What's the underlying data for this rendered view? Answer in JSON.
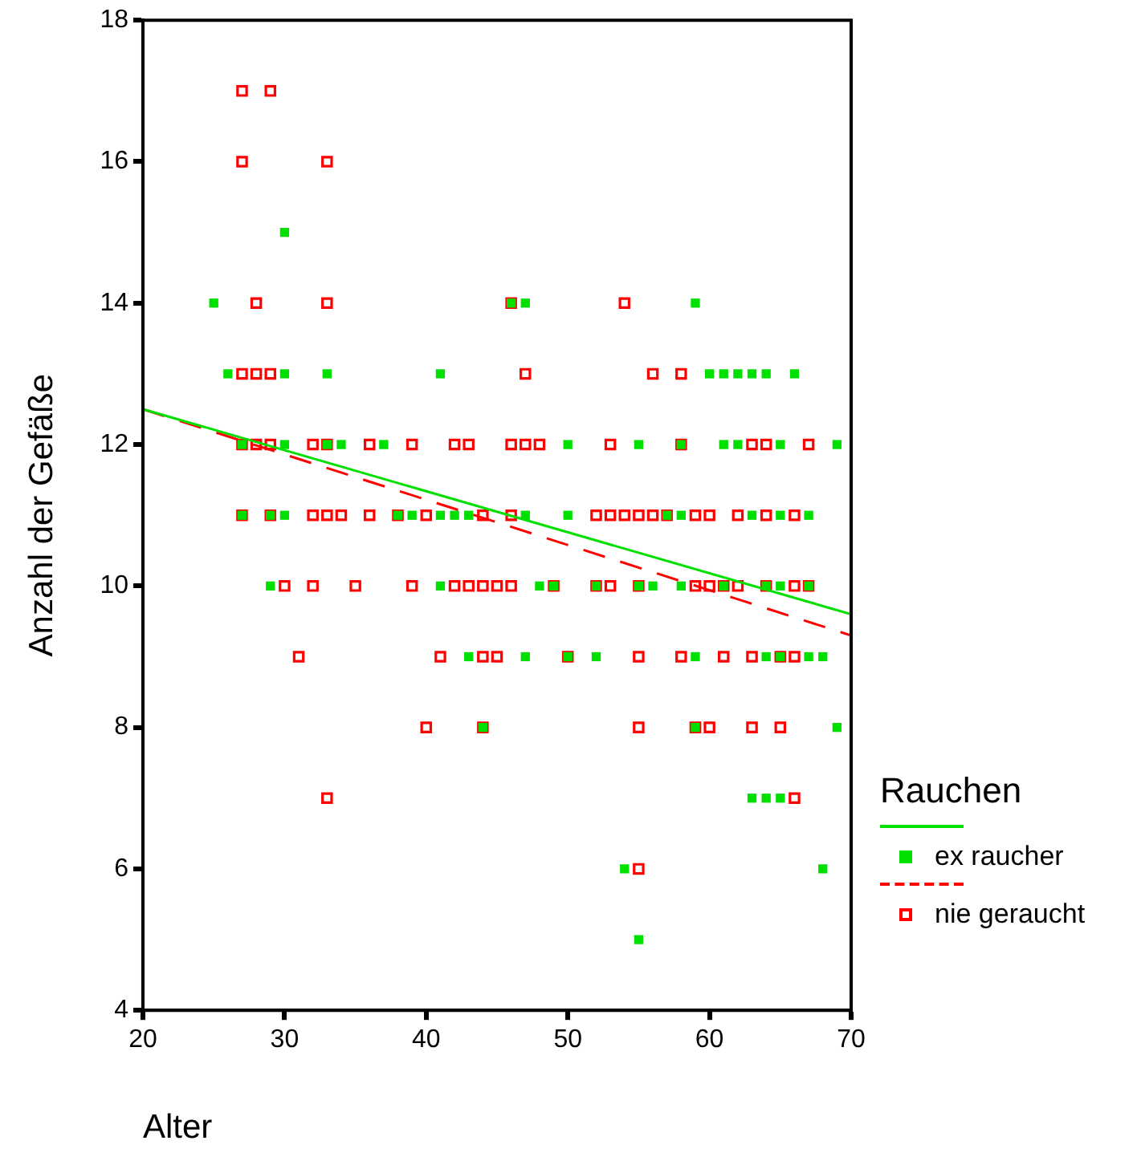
{
  "chart_data": {
    "type": "scatter",
    "xlabel": "Alter",
    "ylabel": "Anzahl der Gefäße",
    "legend_title": "Rauchen",
    "legend": "right",
    "grid": false,
    "marker": "square",
    "xlim": [
      20,
      70
    ],
    "xticks": [
      20,
      30,
      40,
      50,
      60,
      70
    ],
    "ylim": [
      4,
      18
    ],
    "yticks": [
      4,
      6,
      8,
      10,
      12,
      14,
      16,
      18
    ],
    "series": [
      {
        "name": "ex raucher",
        "color": "#00e000",
        "x": [
          30,
          25,
          46,
          47,
          59,
          26,
          30,
          33,
          41,
          60,
          61,
          62,
          63,
          64,
          66,
          27,
          30,
          33,
          34,
          37,
          50,
          55,
          58,
          61,
          62,
          65,
          69,
          27,
          29,
          30,
          38,
          39,
          41,
          42,
          43,
          47,
          50,
          57,
          58,
          63,
          65,
          67,
          29,
          41,
          48,
          49,
          52,
          55,
          56,
          58,
          61,
          64,
          65,
          67,
          43,
          47,
          50,
          52,
          59,
          64,
          65,
          67,
          68,
          44,
          59,
          69,
          63,
          64,
          65,
          54,
          68,
          55
        ],
        "values": [
          15,
          14,
          14,
          14,
          14,
          13,
          13,
          13,
          13,
          13,
          13,
          13,
          13,
          13,
          13,
          12,
          12,
          12,
          12,
          12,
          12,
          12,
          12,
          12,
          12,
          12,
          12,
          11,
          11,
          11,
          11,
          11,
          11,
          11,
          11,
          11,
          11,
          11,
          11,
          11,
          11,
          11,
          10,
          10,
          10,
          10,
          10,
          10,
          10,
          10,
          10,
          10,
          10,
          10,
          9,
          9,
          9,
          9,
          9,
          9,
          9,
          9,
          9,
          8,
          8,
          8,
          7,
          7,
          7,
          6,
          6,
          5
        ]
      },
      {
        "name": "nie geraucht",
        "color": "#ff0000",
        "x": [
          27,
          29,
          27,
          33,
          28,
          33,
          46,
          54,
          27,
          28,
          29,
          47,
          56,
          58,
          27,
          28,
          29,
          32,
          33,
          36,
          39,
          42,
          43,
          46,
          47,
          48,
          53,
          58,
          63,
          64,
          67,
          27,
          29,
          32,
          33,
          34,
          36,
          38,
          40,
          44,
          46,
          52,
          53,
          54,
          55,
          56,
          57,
          59,
          60,
          62,
          64,
          66,
          30,
          32,
          35,
          39,
          42,
          43,
          44,
          45,
          46,
          49,
          52,
          53,
          55,
          59,
          60,
          61,
          62,
          64,
          66,
          67,
          31,
          41,
          44,
          45,
          50,
          55,
          58,
          61,
          63,
          65,
          66,
          40,
          44,
          55,
          59,
          60,
          63,
          65,
          33,
          66,
          55
        ],
        "values": [
          17,
          17,
          16,
          16,
          14,
          14,
          14,
          14,
          13,
          13,
          13,
          13,
          13,
          13,
          12,
          12,
          12,
          12,
          12,
          12,
          12,
          12,
          12,
          12,
          12,
          12,
          12,
          12,
          12,
          12,
          12,
          11,
          11,
          11,
          11,
          11,
          11,
          11,
          11,
          11,
          11,
          11,
          11,
          11,
          11,
          11,
          11,
          11,
          11,
          11,
          11,
          11,
          10,
          10,
          10,
          10,
          10,
          10,
          10,
          10,
          10,
          10,
          10,
          10,
          10,
          10,
          10,
          10,
          10,
          10,
          10,
          10,
          9,
          9,
          9,
          9,
          9,
          9,
          9,
          9,
          9,
          9,
          9,
          8,
          8,
          8,
          8,
          8,
          8,
          8,
          7,
          7,
          6
        ]
      },
      {
        "type": "line",
        "color": "#00e000",
        "marker": "none",
        "line_style": "solid",
        "x": [
          20,
          70
        ],
        "values": [
          12.5,
          9.6
        ]
      },
      {
        "type": "line",
        "color": "#ff0000",
        "marker": "none",
        "line_style": "dashed",
        "x": [
          20,
          70
        ],
        "values": [
          12.5,
          9.3
        ]
      }
    ]
  }
}
